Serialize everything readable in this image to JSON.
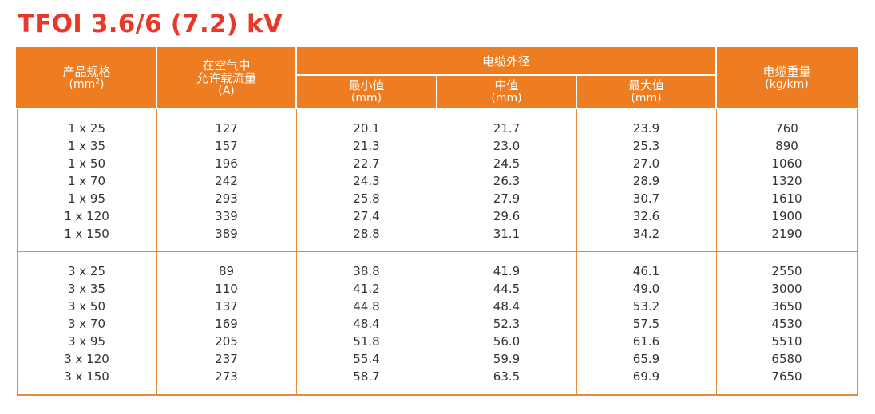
{
  "title": "TFOI 3.6/6 (7.2) kV",
  "headers": {
    "product_spec": {
      "main": "产品规格",
      "unit_prefix": "(mm",
      "unit_sup": "2",
      "unit_suffix": ")"
    },
    "allowable_current": {
      "line1": "在空气中",
      "line2": "允许载流量",
      "unit": "(A)"
    },
    "outer_diameter": {
      "group_label": "电缆外径",
      "min": {
        "label": "最小值",
        "unit": "(mm)"
      },
      "mid": {
        "label": "中值",
        "unit": "(mm)"
      },
      "max": {
        "label": "最大值",
        "unit": "(mm)"
      }
    },
    "cable_weight": {
      "main": "电缆重量",
      "unit": "(kg/km)"
    }
  },
  "groups": [
    {
      "spec": [
        "1 x 25",
        "1 x 35",
        "1 x 50",
        "1 x 70",
        "1 x 95",
        "1 x 120",
        "1 x 150"
      ],
      "current": [
        "127",
        "157",
        "196",
        "242",
        "293",
        "339",
        "389"
      ],
      "min": [
        "20.1",
        "21.3",
        "22.7",
        "24.3",
        "25.8",
        "27.4",
        "28.8"
      ],
      "mid": [
        "21.7",
        "23.0",
        "24.5",
        "26.3",
        "27.9",
        "29.6",
        "31.1"
      ],
      "max": [
        "23.9",
        "25.3",
        "27.0",
        "28.9",
        "30.7",
        "32.6",
        "34.2"
      ],
      "weight": [
        "760",
        "890",
        "1060",
        "1320",
        "1610",
        "1900",
        "2190"
      ]
    },
    {
      "spec": [
        "3 x 25",
        "3 x 35",
        "3 x 50",
        "3 x 70",
        "3 x 95",
        "3 x 120",
        "3 x 150"
      ],
      "current": [
        "89",
        "110",
        "137",
        "169",
        "205",
        "237",
        "273"
      ],
      "min": [
        "38.8",
        "41.2",
        "44.8",
        "48.4",
        "51.8",
        "55.4",
        "58.7"
      ],
      "mid": [
        "41.9",
        "44.5",
        "48.4",
        "52.3",
        "56.0",
        "59.9",
        "63.5"
      ],
      "max": [
        "46.1",
        "49.0",
        "53.2",
        "57.5",
        "61.6",
        "65.9",
        "69.9"
      ],
      "weight": [
        "2550",
        "3000",
        "3650",
        "4530",
        "5510",
        "6580",
        "7650"
      ]
    }
  ],
  "colors": {
    "title": "#e8382a",
    "header_bg": "#ee7d21",
    "border": "#e58a3a",
    "text": "#333333"
  }
}
